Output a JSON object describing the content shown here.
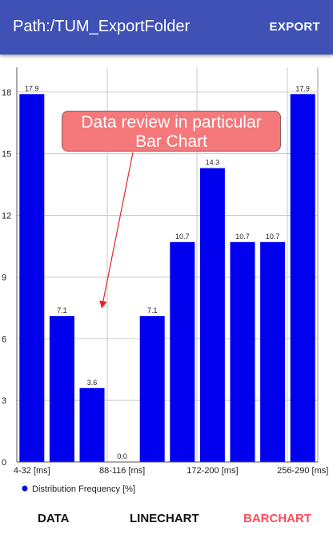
{
  "header": {
    "title": "Path:/TUM_ExportFolder",
    "action": "EXPORT"
  },
  "callout": {
    "line1": "Data review in particular",
    "line2": "Bar Chart"
  },
  "colors": {
    "appbar": "#3f51b5",
    "bar": "#0000ee",
    "active_tab": "#ff4b5a",
    "callout": "#f5787a",
    "arrow": "#e0262b"
  },
  "chart_data": {
    "type": "bar",
    "categories": [
      "4-32 [ms]",
      "",
      "",
      "88-116 [ms]",
      "",
      "",
      "172-200 [ms]",
      "",
      "",
      "256-290 [ms]"
    ],
    "values": [
      17.9,
      7.1,
      3.6,
      0.0,
      7.1,
      10.7,
      14.3,
      10.7,
      10.7,
      17.9
    ],
    "value_labels": [
      "17.9",
      "7.1",
      "3.6",
      "0.0",
      "7.1",
      "10.7",
      "14.3",
      "10.7",
      "10.7",
      "17.9"
    ],
    "yticks": [
      "0",
      "3",
      "6",
      "9",
      "12",
      "15",
      "18"
    ],
    "ylim": [
      0,
      19.2
    ],
    "legend": "Distribution Frequency [%]",
    "legend_position": "bottom-left",
    "grid": true
  },
  "nav": {
    "tabs": [
      "DATA",
      "LINECHART",
      "BARCHART"
    ],
    "active": 2
  }
}
